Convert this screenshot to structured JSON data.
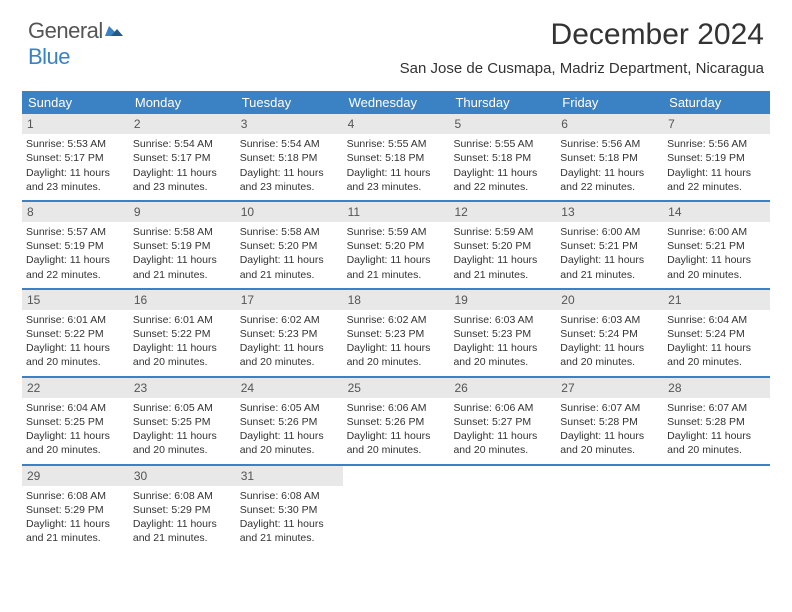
{
  "brand": {
    "word1": "General",
    "word2": "Blue"
  },
  "title": "December 2024",
  "location": "San Jose de Cusmapa, Madriz Department, Nicaragua",
  "colors": {
    "header_bg": "#3b82c4",
    "header_fg": "#ffffff",
    "daynum_bg": "#e8e8e8",
    "border": "#3b82c4"
  },
  "weekdays": [
    "Sunday",
    "Monday",
    "Tuesday",
    "Wednesday",
    "Thursday",
    "Friday",
    "Saturday"
  ],
  "weeks": [
    [
      {
        "n": "1",
        "sr": "5:53 AM",
        "ss": "5:17 PM",
        "dl": "11 hours and 23 minutes."
      },
      {
        "n": "2",
        "sr": "5:54 AM",
        "ss": "5:17 PM",
        "dl": "11 hours and 23 minutes."
      },
      {
        "n": "3",
        "sr": "5:54 AM",
        "ss": "5:18 PM",
        "dl": "11 hours and 23 minutes."
      },
      {
        "n": "4",
        "sr": "5:55 AM",
        "ss": "5:18 PM",
        "dl": "11 hours and 23 minutes."
      },
      {
        "n": "5",
        "sr": "5:55 AM",
        "ss": "5:18 PM",
        "dl": "11 hours and 22 minutes."
      },
      {
        "n": "6",
        "sr": "5:56 AM",
        "ss": "5:18 PM",
        "dl": "11 hours and 22 minutes."
      },
      {
        "n": "7",
        "sr": "5:56 AM",
        "ss": "5:19 PM",
        "dl": "11 hours and 22 minutes."
      }
    ],
    [
      {
        "n": "8",
        "sr": "5:57 AM",
        "ss": "5:19 PM",
        "dl": "11 hours and 22 minutes."
      },
      {
        "n": "9",
        "sr": "5:58 AM",
        "ss": "5:19 PM",
        "dl": "11 hours and 21 minutes."
      },
      {
        "n": "10",
        "sr": "5:58 AM",
        "ss": "5:20 PM",
        "dl": "11 hours and 21 minutes."
      },
      {
        "n": "11",
        "sr": "5:59 AM",
        "ss": "5:20 PM",
        "dl": "11 hours and 21 minutes."
      },
      {
        "n": "12",
        "sr": "5:59 AM",
        "ss": "5:20 PM",
        "dl": "11 hours and 21 minutes."
      },
      {
        "n": "13",
        "sr": "6:00 AM",
        "ss": "5:21 PM",
        "dl": "11 hours and 21 minutes."
      },
      {
        "n": "14",
        "sr": "6:00 AM",
        "ss": "5:21 PM",
        "dl": "11 hours and 20 minutes."
      }
    ],
    [
      {
        "n": "15",
        "sr": "6:01 AM",
        "ss": "5:22 PM",
        "dl": "11 hours and 20 minutes."
      },
      {
        "n": "16",
        "sr": "6:01 AM",
        "ss": "5:22 PM",
        "dl": "11 hours and 20 minutes."
      },
      {
        "n": "17",
        "sr": "6:02 AM",
        "ss": "5:23 PM",
        "dl": "11 hours and 20 minutes."
      },
      {
        "n": "18",
        "sr": "6:02 AM",
        "ss": "5:23 PM",
        "dl": "11 hours and 20 minutes."
      },
      {
        "n": "19",
        "sr": "6:03 AM",
        "ss": "5:23 PM",
        "dl": "11 hours and 20 minutes."
      },
      {
        "n": "20",
        "sr": "6:03 AM",
        "ss": "5:24 PM",
        "dl": "11 hours and 20 minutes."
      },
      {
        "n": "21",
        "sr": "6:04 AM",
        "ss": "5:24 PM",
        "dl": "11 hours and 20 minutes."
      }
    ],
    [
      {
        "n": "22",
        "sr": "6:04 AM",
        "ss": "5:25 PM",
        "dl": "11 hours and 20 minutes."
      },
      {
        "n": "23",
        "sr": "6:05 AM",
        "ss": "5:25 PM",
        "dl": "11 hours and 20 minutes."
      },
      {
        "n": "24",
        "sr": "6:05 AM",
        "ss": "5:26 PM",
        "dl": "11 hours and 20 minutes."
      },
      {
        "n": "25",
        "sr": "6:06 AM",
        "ss": "5:26 PM",
        "dl": "11 hours and 20 minutes."
      },
      {
        "n": "26",
        "sr": "6:06 AM",
        "ss": "5:27 PM",
        "dl": "11 hours and 20 minutes."
      },
      {
        "n": "27",
        "sr": "6:07 AM",
        "ss": "5:28 PM",
        "dl": "11 hours and 20 minutes."
      },
      {
        "n": "28",
        "sr": "6:07 AM",
        "ss": "5:28 PM",
        "dl": "11 hours and 20 minutes."
      }
    ],
    [
      {
        "n": "29",
        "sr": "6:08 AM",
        "ss": "5:29 PM",
        "dl": "11 hours and 21 minutes."
      },
      {
        "n": "30",
        "sr": "6:08 AM",
        "ss": "5:29 PM",
        "dl": "11 hours and 21 minutes."
      },
      {
        "n": "31",
        "sr": "6:08 AM",
        "ss": "5:30 PM",
        "dl": "11 hours and 21 minutes."
      },
      null,
      null,
      null,
      null
    ]
  ],
  "labels": {
    "sunrise": "Sunrise:",
    "sunset": "Sunset:",
    "daylight": "Daylight:"
  }
}
